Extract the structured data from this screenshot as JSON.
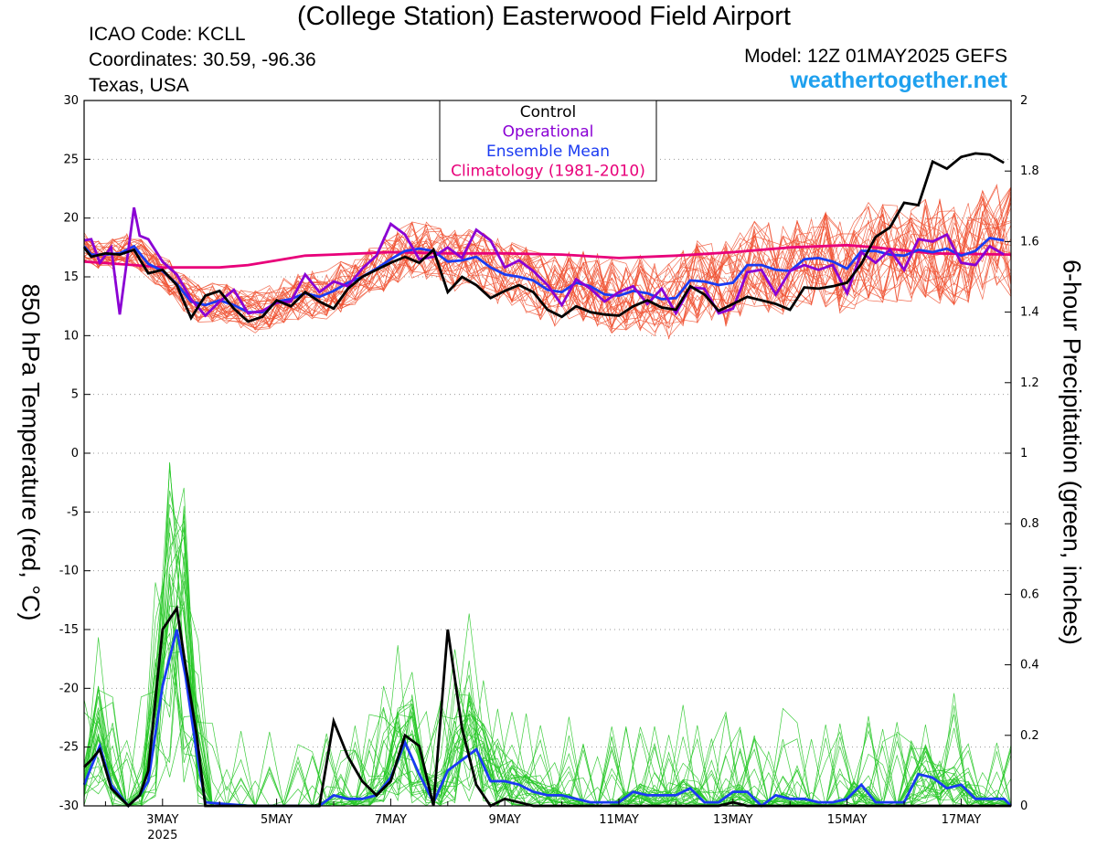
{
  "header": {
    "title": "(College Station) Easterwood Field Airport",
    "icao": "ICAO Code: KCLL",
    "coords": "Coordinates: 30.59, -96.36",
    "region": "Texas, USA",
    "model": "Model: 12Z 01MAY2025 GEFS",
    "site": "weathertogether.net"
  },
  "axes": {
    "left_label": "850 hPa Temperature (red, °C)",
    "right_label": "6-hour Precipitation (green, inches)"
  },
  "colors": {
    "control": "#000000",
    "operational": "#8a00d4",
    "mean": "#1a3af2",
    "climatology": "#e8007a",
    "members_temp": "#f05030",
    "members_precip": "#28c828",
    "site": "#1ea0ee"
  },
  "chart_data": {
    "type": "line",
    "x_unit": "days since 00Z 1MAY2025",
    "xlim": [
      1.625,
      17.875
    ],
    "ylim_left": [
      -30,
      30
    ],
    "ylim_right": [
      0,
      2
    ],
    "left_ticks": [
      30,
      25,
      20,
      15,
      10,
      5,
      0,
      -5,
      -10,
      -15,
      -20,
      -25,
      -30
    ],
    "right_ticks": [
      2,
      1.8,
      1.6,
      1.4,
      1.2,
      1,
      0.8,
      0.6,
      0.4,
      0.2,
      0
    ],
    "x_ticks": [
      {
        "t": 3,
        "label": "3MAY",
        "sub": "2025"
      },
      {
        "t": 5,
        "label": "5MAY",
        "sub": ""
      },
      {
        "t": 7,
        "label": "7MAY",
        "sub": ""
      },
      {
        "t": 9,
        "label": "9MAY",
        "sub": ""
      },
      {
        "t": 11,
        "label": "11MAY",
        "sub": ""
      },
      {
        "t": 13,
        "label": "13MAY",
        "sub": ""
      },
      {
        "t": 15,
        "label": "15MAY",
        "sub": ""
      },
      {
        "t": 17,
        "label": "17MAY",
        "sub": ""
      }
    ],
    "grid": true,
    "legend": {
      "position": "top-center",
      "entries": [
        {
          "name": "Control",
          "color": "#000000"
        },
        {
          "name": "Operational",
          "color": "#8a00d4"
        },
        {
          "name": "Ensemble Mean",
          "color": "#1a3af2"
        },
        {
          "name": "Climatology (1981-2010)",
          "color": "#e8007a"
        }
      ]
    },
    "temperature": {
      "control": [
        [
          1.625,
          17.5
        ],
        [
          1.75,
          16.7
        ],
        [
          2,
          17
        ],
        [
          2.25,
          16.9
        ],
        [
          2.5,
          17.3
        ],
        [
          2.75,
          15.3
        ],
        [
          3,
          15.6
        ],
        [
          3.25,
          14.3
        ],
        [
          3.5,
          11.5
        ],
        [
          3.75,
          13.4
        ],
        [
          4,
          13.8
        ],
        [
          4.25,
          12.3
        ],
        [
          4.5,
          11.2
        ],
        [
          4.75,
          11.6
        ],
        [
          5,
          13
        ],
        [
          5.25,
          12.5
        ],
        [
          5.5,
          13.7
        ],
        [
          5.75,
          12.9
        ],
        [
          6,
          12.3
        ],
        [
          6.25,
          14
        ],
        [
          6.5,
          15
        ],
        [
          6.75,
          15.6
        ],
        [
          7,
          16.2
        ],
        [
          7.25,
          16.7
        ],
        [
          7.5,
          16.2
        ],
        [
          7.75,
          17.3
        ],
        [
          8,
          13.7
        ],
        [
          8.25,
          15
        ],
        [
          8.5,
          14.3
        ],
        [
          8.75,
          13.2
        ],
        [
          9,
          13.8
        ],
        [
          9.25,
          14.3
        ],
        [
          9.5,
          13.7
        ],
        [
          9.75,
          12.2
        ],
        [
          10,
          11.6
        ],
        [
          10.25,
          12.5
        ],
        [
          10.5,
          12
        ],
        [
          10.75,
          11.8
        ],
        [
          11,
          11.7
        ],
        [
          11.25,
          12.5
        ],
        [
          11.5,
          13
        ],
        [
          11.75,
          12.4
        ],
        [
          12,
          12.2
        ],
        [
          12.25,
          14.2
        ],
        [
          12.5,
          13.5
        ],
        [
          12.75,
          12.1
        ],
        [
          13,
          12.7
        ],
        [
          13.25,
          13.3
        ],
        [
          13.5,
          13
        ],
        [
          13.75,
          12.7
        ],
        [
          14,
          12.2
        ],
        [
          14.25,
          14.1
        ],
        [
          14.5,
          14
        ],
        [
          14.75,
          14.2
        ],
        [
          15,
          14.5
        ],
        [
          15.25,
          16.1
        ],
        [
          15.5,
          18.4
        ],
        [
          15.75,
          19.2
        ],
        [
          16,
          21.3
        ],
        [
          16.25,
          21.1
        ],
        [
          16.5,
          24.8
        ],
        [
          16.75,
          24.2
        ],
        [
          17,
          25.2
        ],
        [
          17.25,
          25.5
        ],
        [
          17.5,
          25.4
        ],
        [
          17.75,
          24.7
        ]
      ],
      "operational": [
        [
          1.625,
          18.1
        ],
        [
          1.75,
          18.2
        ],
        [
          1.9,
          16.2
        ],
        [
          2.1,
          17.5
        ],
        [
          2.25,
          11.8
        ],
        [
          2.5,
          20.9
        ],
        [
          2.6,
          18.5
        ],
        [
          2.75,
          18.2
        ],
        [
          3,
          16.3
        ],
        [
          3.25,
          15.2
        ],
        [
          3.5,
          13.1
        ],
        [
          3.75,
          11.7
        ],
        [
          4,
          12.9
        ],
        [
          4.25,
          13.9
        ],
        [
          4.5,
          11.9
        ],
        [
          4.75,
          12.1
        ],
        [
          5,
          12.8
        ],
        [
          5.25,
          12.9
        ],
        [
          5.5,
          15.2
        ],
        [
          5.75,
          13.7
        ],
        [
          6,
          14.6
        ],
        [
          6.25,
          14.2
        ],
        [
          6.5,
          15.7
        ],
        [
          6.75,
          16.8
        ],
        [
          7,
          19.5
        ],
        [
          7.25,
          18.6
        ],
        [
          7.5,
          16.5
        ],
        [
          7.75,
          16.7
        ],
        [
          8,
          17.5
        ],
        [
          8.25,
          16.6
        ],
        [
          8.5,
          19
        ],
        [
          8.75,
          18.1
        ],
        [
          9,
          15.8
        ],
        [
          9.25,
          16.4
        ],
        [
          9.5,
          15.5
        ],
        [
          9.75,
          14.3
        ],
        [
          10,
          12.6
        ],
        [
          10.25,
          14.8
        ],
        [
          10.5,
          14
        ],
        [
          10.75,
          12.9
        ],
        [
          11,
          13.7
        ],
        [
          11.25,
          14.2
        ],
        [
          11.5,
          12.7
        ],
        [
          11.75,
          14
        ],
        [
          12,
          11.9
        ],
        [
          12.25,
          14.1
        ],
        [
          12.5,
          14
        ],
        [
          12.75,
          11.9
        ],
        [
          13,
          12.3
        ],
        [
          13.25,
          15.4
        ],
        [
          13.5,
          15.6
        ],
        [
          13.75,
          13.5
        ],
        [
          14,
          15.5
        ],
        [
          14.25,
          16
        ],
        [
          14.5,
          15.6
        ],
        [
          14.75,
          16
        ],
        [
          15,
          13.6
        ],
        [
          15.25,
          17.1
        ],
        [
          15.5,
          16.2
        ],
        [
          15.75,
          17.3
        ],
        [
          16,
          15.6
        ],
        [
          16.25,
          18.2
        ],
        [
          16.5,
          18
        ],
        [
          16.75,
          18.6
        ],
        [
          17,
          16.2
        ],
        [
          17.25,
          16
        ],
        [
          17.5,
          17.6
        ],
        [
          17.75,
          16.9
        ]
      ],
      "mean": [
        [
          1.625,
          17.6
        ],
        [
          1.75,
          16.9
        ],
        [
          2,
          16.9
        ],
        [
          2.25,
          17
        ],
        [
          2.5,
          17.6
        ],
        [
          2.75,
          16.1
        ],
        [
          3,
          15.5
        ],
        [
          3.25,
          14.4
        ],
        [
          3.5,
          12.9
        ],
        [
          3.75,
          12.6
        ],
        [
          4,
          13
        ],
        [
          4.25,
          12.6
        ],
        [
          4.5,
          12
        ],
        [
          4.75,
          12
        ],
        [
          5,
          12.9
        ],
        [
          5.25,
          13.1
        ],
        [
          5.5,
          13.6
        ],
        [
          5.75,
          13.3
        ],
        [
          6,
          13.8
        ],
        [
          6.25,
          14.5
        ],
        [
          6.5,
          15
        ],
        [
          6.75,
          15.7
        ],
        [
          7,
          16.5
        ],
        [
          7.25,
          17.2
        ],
        [
          7.5,
          17.4
        ],
        [
          7.75,
          17.2
        ],
        [
          8,
          16.3
        ],
        [
          8.25,
          16.4
        ],
        [
          8.5,
          16.7
        ],
        [
          8.75,
          15.8
        ],
        [
          9,
          15.2
        ],
        [
          9.25,
          15
        ],
        [
          9.5,
          14.7
        ],
        [
          9.75,
          13.9
        ],
        [
          10,
          13.7
        ],
        [
          10.25,
          14.5
        ],
        [
          10.5,
          14.2
        ],
        [
          10.75,
          13.5
        ],
        [
          11,
          13.4
        ],
        [
          11.25,
          13.8
        ],
        [
          11.5,
          13.6
        ],
        [
          11.75,
          13.1
        ],
        [
          12,
          13.2
        ],
        [
          12.25,
          14.7
        ],
        [
          12.5,
          14.6
        ],
        [
          12.75,
          14.3
        ],
        [
          13,
          14.5
        ],
        [
          13.25,
          16
        ],
        [
          13.5,
          16
        ],
        [
          13.75,
          15.6
        ],
        [
          14,
          15.5
        ],
        [
          14.25,
          16.5
        ],
        [
          14.5,
          16.6
        ],
        [
          14.75,
          16.3
        ],
        [
          15,
          15.7
        ],
        [
          15.25,
          17.2
        ],
        [
          15.5,
          17.2
        ],
        [
          15.75,
          16.9
        ],
        [
          16,
          16.8
        ],
        [
          16.25,
          17.3
        ],
        [
          16.5,
          17.1
        ],
        [
          16.75,
          17.4
        ],
        [
          17,
          16.8
        ],
        [
          17.25,
          17.2
        ],
        [
          17.5,
          18.3
        ],
        [
          17.75,
          18.1
        ]
      ],
      "climatology": [
        [
          1.625,
          16.3
        ],
        [
          2.5,
          16
        ],
        [
          3,
          15.8
        ],
        [
          4,
          15.8
        ],
        [
          4.5,
          16
        ],
        [
          5,
          16.4
        ],
        [
          5.5,
          16.8
        ],
        [
          6,
          16.9
        ],
        [
          7,
          17.1
        ],
        [
          8,
          17
        ],
        [
          9,
          17
        ],
        [
          10,
          16.9
        ],
        [
          11,
          16.6
        ],
        [
          12,
          16.8
        ],
        [
          13,
          17.1
        ],
        [
          14,
          17.5
        ],
        [
          15,
          17.7
        ],
        [
          15.5,
          17.5
        ],
        [
          16.5,
          17
        ],
        [
          17.875,
          16.9
        ]
      ]
    },
    "precipitation": {
      "control": [
        [
          1.625,
          0.11
        ],
        [
          1.75,
          0.13
        ],
        [
          1.9,
          0.16
        ],
        [
          2.1,
          0.05
        ],
        [
          2.4,
          0
        ],
        [
          2.6,
          0.03
        ],
        [
          2.75,
          0.1
        ],
        [
          3,
          0.5
        ],
        [
          3.25,
          0.56
        ],
        [
          3.4,
          0.4
        ],
        [
          3.6,
          0.2
        ],
        [
          3.75,
          0
        ],
        [
          5.75,
          0
        ],
        [
          6,
          0.24
        ],
        [
          6.25,
          0.14
        ],
        [
          6.5,
          0.07
        ],
        [
          6.75,
          0.03
        ],
        [
          7,
          0.07
        ],
        [
          7.25,
          0.2
        ],
        [
          7.5,
          0.17
        ],
        [
          7.75,
          0
        ],
        [
          8,
          0.5
        ],
        [
          8.25,
          0.22
        ],
        [
          8.5,
          0.06
        ],
        [
          8.75,
          0
        ],
        [
          9,
          0.02
        ],
        [
          9.5,
          0
        ],
        [
          12.75,
          0
        ],
        [
          13,
          0.01
        ],
        [
          13.25,
          0
        ],
        [
          17.875,
          0
        ]
      ],
      "mean": [
        [
          1.625,
          0.06
        ],
        [
          1.75,
          0.11
        ],
        [
          1.9,
          0.17
        ],
        [
          2.1,
          0.06
        ],
        [
          2.4,
          0
        ],
        [
          2.6,
          0.03
        ],
        [
          2.75,
          0.07
        ],
        [
          3,
          0.34
        ],
        [
          3.25,
          0.5
        ],
        [
          3.4,
          0.37
        ],
        [
          3.6,
          0.15
        ],
        [
          3.75,
          0.01
        ],
        [
          4.5,
          0
        ],
        [
          5.75,
          0
        ],
        [
          6,
          0.03
        ],
        [
          6.25,
          0.02
        ],
        [
          6.5,
          0.02
        ],
        [
          6.75,
          0.03
        ],
        [
          7,
          0.08
        ],
        [
          7.25,
          0.18
        ],
        [
          7.5,
          0.09
        ],
        [
          7.75,
          0.01
        ],
        [
          8,
          0.1
        ],
        [
          8.25,
          0.13
        ],
        [
          8.5,
          0.16
        ],
        [
          8.75,
          0.07
        ],
        [
          9,
          0.07
        ],
        [
          9.25,
          0.06
        ],
        [
          9.5,
          0.04
        ],
        [
          9.75,
          0.03
        ],
        [
          10,
          0.03
        ],
        [
          10.25,
          0.02
        ],
        [
          10.5,
          0.01
        ],
        [
          10.75,
          0.01
        ],
        [
          11,
          0.01
        ],
        [
          11.25,
          0.04
        ],
        [
          11.5,
          0.03
        ],
        [
          11.75,
          0.03
        ],
        [
          12,
          0.03
        ],
        [
          12.25,
          0.05
        ],
        [
          12.5,
          0.01
        ],
        [
          12.75,
          0.01
        ],
        [
          13,
          0.04
        ],
        [
          13.25,
          0.04
        ],
        [
          13.5,
          0
        ],
        [
          13.75,
          0.03
        ],
        [
          14,
          0.02
        ],
        [
          14.25,
          0.02
        ],
        [
          14.5,
          0.01
        ],
        [
          14.75,
          0.01
        ],
        [
          15,
          0.02
        ],
        [
          15.25,
          0.06
        ],
        [
          15.5,
          0.01
        ],
        [
          15.75,
          0.01
        ],
        [
          16,
          0.01
        ],
        [
          16.25,
          0.09
        ],
        [
          16.5,
          0.08
        ],
        [
          16.75,
          0.05
        ],
        [
          17,
          0.06
        ],
        [
          17.25,
          0.02
        ],
        [
          17.5,
          0.02
        ],
        [
          17.75,
          0.02
        ],
        [
          17.875,
          0
        ]
      ]
    }
  }
}
